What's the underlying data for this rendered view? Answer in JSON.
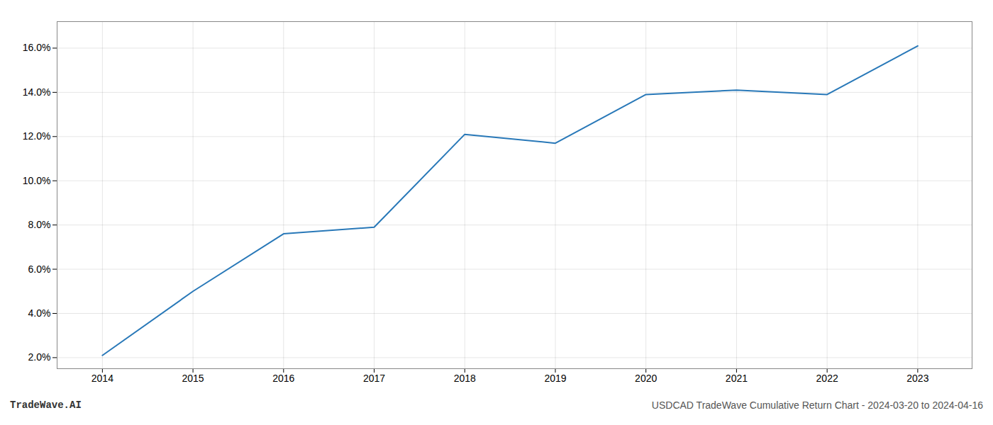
{
  "chart_data": {
    "type": "line",
    "x": [
      2014,
      2015,
      2016,
      2017,
      2018,
      2019,
      2020,
      2021,
      2022,
      2023
    ],
    "values": [
      2.1,
      5.0,
      7.6,
      7.9,
      12.1,
      11.7,
      13.9,
      14.1,
      13.9,
      16.1
    ],
    "color": "#2878b8",
    "xlim": [
      2013.5,
      2023.6
    ],
    "xticks": [
      2014,
      2015,
      2016,
      2017,
      2018,
      2019,
      2020,
      2021,
      2022,
      2023
    ],
    "ylim": [
      1.5,
      17.2
    ],
    "yticks": [
      {
        "value": 2.0,
        "label": "2.0%"
      },
      {
        "value": 4.0,
        "label": "4.0%"
      },
      {
        "value": 6.0,
        "label": "6.0%"
      },
      {
        "value": 8.0,
        "label": "8.0%"
      },
      {
        "value": 10.0,
        "label": "10.0%"
      },
      {
        "value": 12.0,
        "label": "12.0%"
      },
      {
        "value": 14.0,
        "label": "14.0%"
      },
      {
        "value": 16.0,
        "label": "16.0%"
      }
    ],
    "grid": true,
    "annotations": [
      "TradeWave.AI",
      "USDCAD TradeWave Cumulative Return Chart - 2024-03-20 to 2024-04-16"
    ]
  }
}
